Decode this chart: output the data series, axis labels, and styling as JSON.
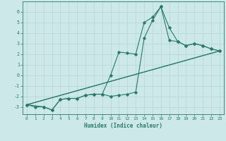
{
  "xlabel": "Humidex (Indice chaleur)",
  "ylabel": "",
  "bg_color": "#cce8e8",
  "grid_color": "#b8d8d8",
  "line_color": "#2a7a6a",
  "xlim": [
    -0.5,
    23.5
  ],
  "ylim": [
    -3.7,
    7.0
  ],
  "yticks": [
    -3,
    -2,
    -1,
    0,
    1,
    2,
    3,
    4,
    5,
    6
  ],
  "xticks": [
    0,
    1,
    2,
    3,
    4,
    5,
    6,
    7,
    8,
    9,
    10,
    11,
    12,
    13,
    14,
    15,
    16,
    17,
    18,
    19,
    20,
    21,
    22,
    23
  ],
  "line1_x": [
    0,
    1,
    2,
    3,
    4,
    5,
    6,
    7,
    8,
    9,
    10,
    11,
    12,
    13,
    14,
    15,
    16,
    17,
    18,
    19,
    20,
    21,
    22,
    23
  ],
  "line1_y": [
    -2.8,
    -3.0,
    -3.0,
    -3.3,
    -2.3,
    -2.2,
    -2.2,
    -1.9,
    -1.8,
    -1.8,
    -2.0,
    -1.9,
    -1.8,
    -1.6,
    3.5,
    5.2,
    6.5,
    4.5,
    3.2,
    2.8,
    3.0,
    2.8,
    2.5,
    2.3
  ],
  "line2_x": [
    0,
    2,
    3,
    4,
    5,
    6,
    7,
    8,
    9,
    10,
    11,
    12,
    13,
    14,
    15,
    16,
    17,
    18,
    19,
    20,
    21,
    22,
    23
  ],
  "line2_y": [
    -2.8,
    -3.0,
    -3.3,
    -2.3,
    -2.2,
    -2.2,
    -1.9,
    -1.8,
    -1.8,
    0.0,
    2.2,
    2.1,
    2.0,
    5.0,
    5.5,
    6.5,
    3.3,
    3.2,
    2.8,
    3.0,
    2.8,
    2.5,
    2.3
  ],
  "line3_x": [
    0,
    23
  ],
  "line3_y": [
    -2.8,
    2.3
  ],
  "line4_x": [
    0,
    23
  ],
  "line4_y": [
    -2.8,
    2.3
  ]
}
